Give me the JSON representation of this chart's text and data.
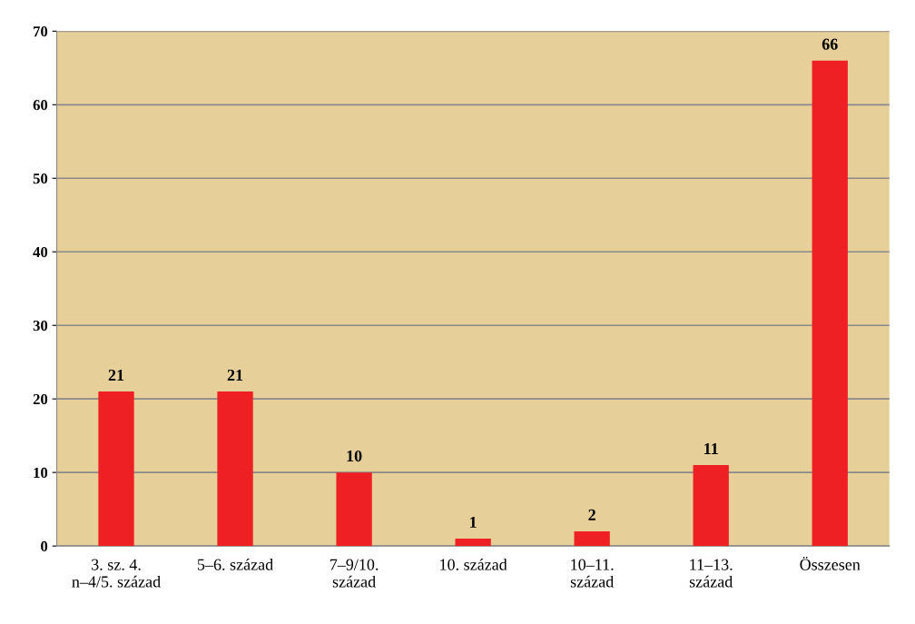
{
  "chart_data": {
    "type": "bar",
    "categories": [
      "3. sz. 4.\nn–4/5. század",
      "5–6. század",
      "7–9/10.\nszázad",
      "10. század",
      "10–11.\nszázad",
      "11–13.\nszázad",
      "Összesen"
    ],
    "values": [
      21,
      21,
      10,
      1,
      2,
      11,
      66
    ],
    "color": "#ee2024",
    "ylim": [
      0,
      70
    ],
    "yticks": [
      0,
      10,
      20,
      30,
      40,
      50,
      60,
      70
    ],
    "grid": "y",
    "data_labels": true
  }
}
